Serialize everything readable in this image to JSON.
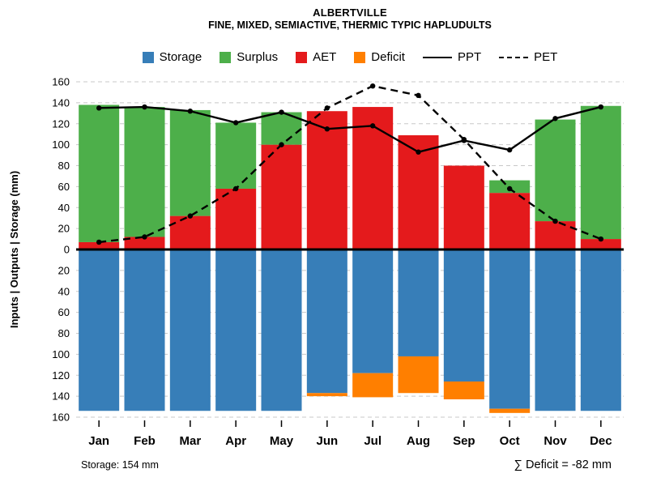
{
  "chart_data": {
    "type": "mixed-bar-line",
    "title": "ALBERTVILLE",
    "subtitle": "FINE, MIXED, SEMIACTIVE, THERMIC TYPIC HAPLUDULTS",
    "ylabel": "Inputs | Outputs | Storage   (mm)",
    "unit": "mm",
    "categories": [
      "Jan",
      "Feb",
      "Mar",
      "Apr",
      "May",
      "Jun",
      "Jul",
      "Aug",
      "Sep",
      "Oct",
      "Nov",
      "Dec"
    ],
    "y_axis": {
      "upper_max": 160,
      "lower_max": 160,
      "step": 20,
      "note": "upper half = inputs/outputs above zero line; lower half = storage/deficit plotted downward",
      "grid": "dashed"
    },
    "series": [
      {
        "name": "AET",
        "plot": "bar",
        "direction": "up",
        "stack_order": 1,
        "color": "#E41A1C",
        "values": [
          7,
          12,
          32,
          58,
          100,
          132,
          136,
          109,
          80,
          54,
          27,
          10
        ]
      },
      {
        "name": "Surplus",
        "plot": "bar",
        "direction": "up",
        "stack_order": 2,
        "color": "#4DAF4A",
        "values": [
          131,
          124,
          101,
          63,
          31,
          0,
          0,
          0,
          0,
          12,
          97,
          127
        ]
      },
      {
        "name": "Storage",
        "plot": "bar",
        "direction": "down",
        "stack_order": 1,
        "color": "#377EB8",
        "values": [
          154,
          154,
          154,
          154,
          154,
          137,
          118,
          102,
          126,
          152,
          154,
          154
        ]
      },
      {
        "name": "Deficit",
        "plot": "bar",
        "direction": "down",
        "stack_order": 2,
        "color": "#FF7F00",
        "values": [
          0,
          0,
          0,
          0,
          0,
          3,
          23,
          35,
          17,
          4,
          0,
          0
        ]
      },
      {
        "name": "PPT",
        "plot": "line",
        "style": "solid",
        "color": "#000000",
        "marker": "circle",
        "values": [
          135,
          136,
          132,
          121,
          131,
          115,
          118,
          93,
          104,
          95,
          125,
          136
        ]
      },
      {
        "name": "PET",
        "plot": "line",
        "style": "dashed",
        "color": "#000000",
        "marker": "circle",
        "values": [
          7,
          12,
          32,
          58,
          100,
          135,
          156,
          147,
          105,
          58,
          27,
          10
        ]
      }
    ],
    "annotations": {
      "storage_note": "Storage: 154 mm",
      "deficit_note": "∑ Deficit = -82 mm"
    }
  },
  "legend": {
    "items": [
      {
        "label": "Storage",
        "swatch": "box",
        "color": "#377EB8"
      },
      {
        "label": "Surplus",
        "swatch": "box",
        "color": "#4DAF4A"
      },
      {
        "label": "AET",
        "swatch": "box",
        "color": "#E41A1C"
      },
      {
        "label": "Deficit",
        "swatch": "box",
        "color": "#FF7F00"
      },
      {
        "label": "PPT",
        "swatch": "line-solid",
        "color": "#000000"
      },
      {
        "label": "PET",
        "swatch": "line-dashed",
        "color": "#000000"
      }
    ]
  }
}
